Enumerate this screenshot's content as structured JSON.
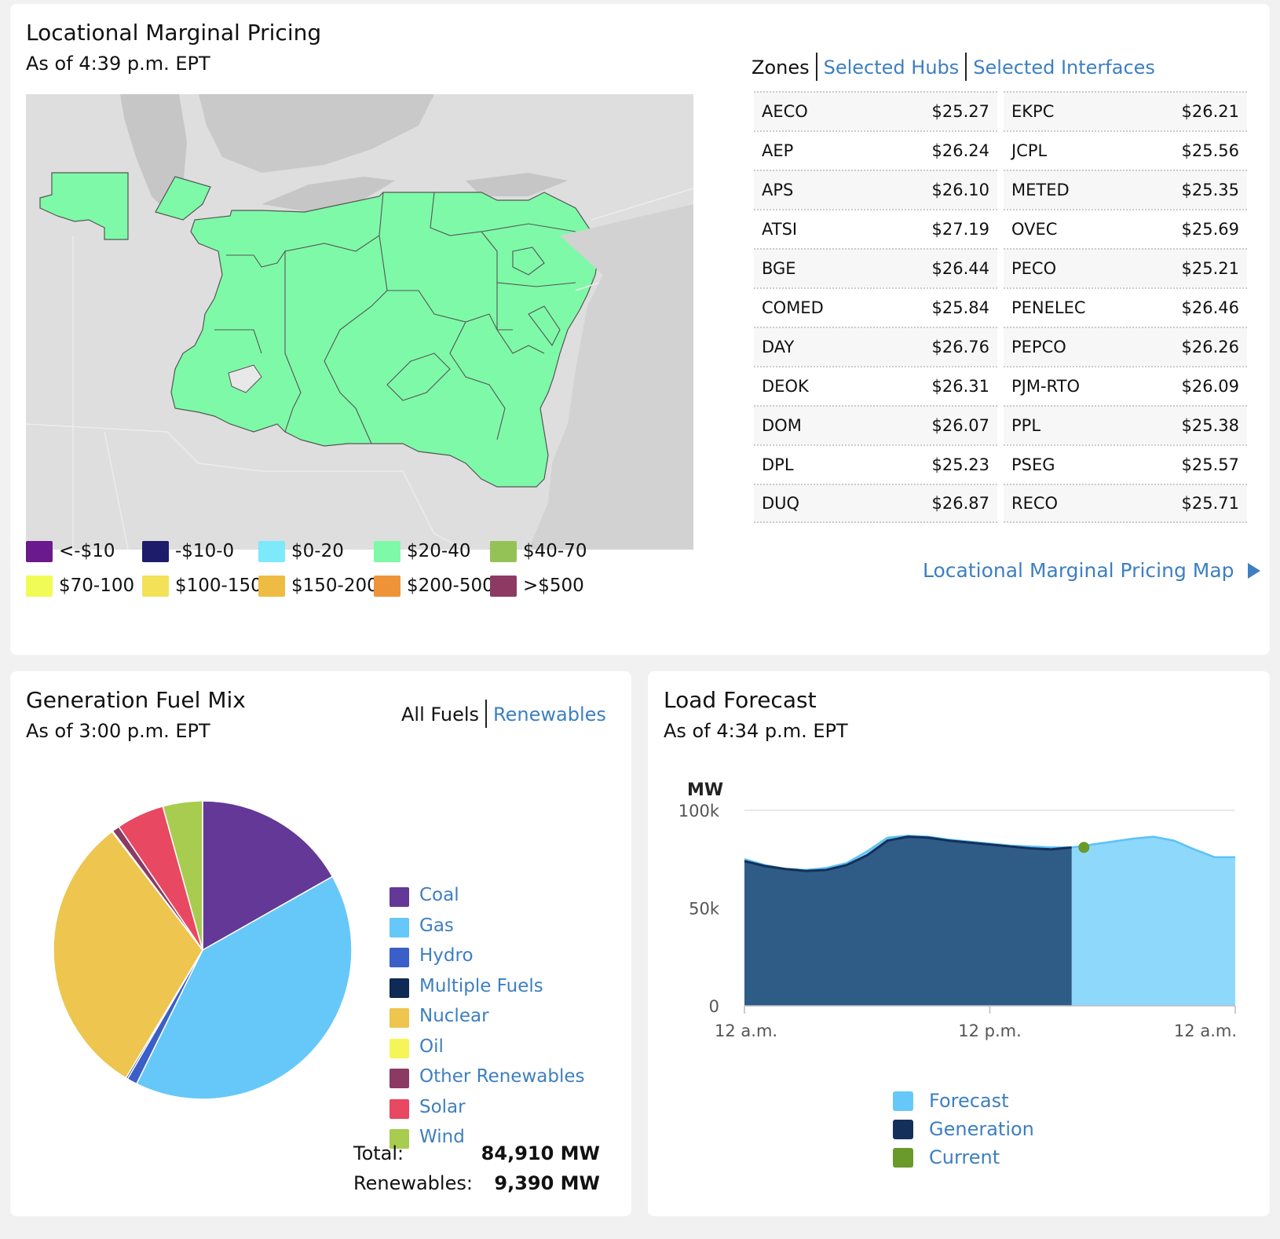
{
  "lmp": {
    "title": "Locational Marginal Pricing",
    "as_of": "As of 4:39 p.m. EPT",
    "tabs": {
      "zones": "Zones",
      "hubs": "Selected Hubs",
      "interfaces": "Selected Interfaces"
    },
    "zones": [
      {
        "name": "AECO",
        "price": "$25.27"
      },
      {
        "name": "AEP",
        "price": "$26.24"
      },
      {
        "name": "APS",
        "price": "$26.10"
      },
      {
        "name": "ATSI",
        "price": "$27.19"
      },
      {
        "name": "BGE",
        "price": "$26.44"
      },
      {
        "name": "COMED",
        "price": "$25.84"
      },
      {
        "name": "DAY",
        "price": "$26.76"
      },
      {
        "name": "DEOK",
        "price": "$26.31"
      },
      {
        "name": "DOM",
        "price": "$26.07"
      },
      {
        "name": "DPL",
        "price": "$25.23"
      },
      {
        "name": "DUQ",
        "price": "$26.87"
      },
      {
        "name": "EKPC",
        "price": "$26.21"
      },
      {
        "name": "JCPL",
        "price": "$25.56"
      },
      {
        "name": "METED",
        "price": "$25.35"
      },
      {
        "name": "OVEC",
        "price": "$25.69"
      },
      {
        "name": "PECO",
        "price": "$25.21"
      },
      {
        "name": "PENELEC",
        "price": "$26.46"
      },
      {
        "name": "PEPCO",
        "price": "$26.26"
      },
      {
        "name": "PJM-RTO",
        "price": "$26.09"
      },
      {
        "name": "PPL",
        "price": "$25.38"
      },
      {
        "name": "PSEG",
        "price": "$25.57"
      },
      {
        "name": "RECO",
        "price": "$25.71"
      }
    ],
    "map_link": "Locational Marginal Pricing Map",
    "map_colors": {
      "zone_fill": "#7ef9a8",
      "background": "#dcdcdc"
    },
    "price_legend": [
      {
        "label": "<-$10",
        "color": "#6a1a8c"
      },
      {
        "label": "-$10-0",
        "color": "#1c1c6b"
      },
      {
        "label": "$0-20",
        "color": "#7de9fb"
      },
      {
        "label": "$20-40",
        "color": "#7ef9a8"
      },
      {
        "label": "$40-70",
        "color": "#95c257"
      },
      {
        "label": "$70-100",
        "color": "#f1fb55"
      },
      {
        "label": "$100-150",
        "color": "#f3e157"
      },
      {
        "label": "$150-200",
        "color": "#efbc43"
      },
      {
        "label": "$200-500",
        "color": "#ee9338"
      },
      {
        "label": ">$500",
        "color": "#8b3b63"
      }
    ]
  },
  "fuel": {
    "title": "Generation Fuel Mix",
    "as_of": "As of 3:00 p.m. EPT",
    "tabs": {
      "all": "All Fuels",
      "renewables": "Renewables"
    },
    "total_label": "Total:",
    "total_value": "84,910 MW",
    "renewables_label": "Renewables:",
    "renewables_value": "9,390 MW"
  },
  "load": {
    "title": "Load Forecast",
    "as_of": "As of 4:34 p.m. EPT",
    "legend": [
      {
        "label": "Forecast",
        "color": "#66c8f8"
      },
      {
        "label": "Generation",
        "color": "#14305a"
      },
      {
        "label": "Current",
        "color": "#6a9a2a"
      }
    ]
  },
  "chart_data": [
    {
      "type": "pie",
      "title": "",
      "categories": [
        "Coal",
        "Gas",
        "Hydro",
        "Multiple Fuels",
        "Nuclear",
        "Oil",
        "Other Renewables",
        "Solar",
        "Wind"
      ],
      "values": [
        16.8,
        40.5,
        1.1,
        0.2,
        31.0,
        0.1,
        0.8,
        5.2,
        4.3
      ],
      "colors": [
        "#633896",
        "#66c8f8",
        "#3a5fc9",
        "#0f2a55",
        "#edc54f",
        "#f5f55a",
        "#8b3b63",
        "#e94862",
        "#a7cc50"
      ],
      "legend_placement": "right"
    },
    {
      "type": "area",
      "title": "",
      "ylabel": "MW",
      "ylim": [
        0,
        100000
      ],
      "yticks": [
        "0",
        "50k",
        "100k"
      ],
      "xticks": [
        "12 a.m.",
        "12 p.m.",
        "12 a.m."
      ],
      "x_hours": [
        0,
        1,
        2,
        3,
        4,
        5,
        6,
        7,
        8,
        9,
        10,
        11,
        12,
        13,
        14,
        15,
        16,
        17,
        18,
        19,
        20,
        21,
        22,
        23,
        24
      ],
      "series": [
        {
          "name": "Forecast",
          "values": [
            75000,
            72000,
            70000,
            69500,
            70500,
            73000,
            79000,
            86000,
            87000,
            86500,
            85000,
            84000,
            83000,
            82000,
            81500,
            81000,
            81000,
            82500,
            84000,
            85500,
            86500,
            84500,
            80000,
            76000,
            76000
          ]
        },
        {
          "name": "Generation",
          "values": [
            74000,
            71500,
            70000,
            69000,
            69500,
            72000,
            77000,
            84500,
            86500,
            86000,
            84500,
            83500,
            82500,
            81500,
            80500,
            80000,
            81000
          ]
        }
      ],
      "current": {
        "hour": 16.6,
        "value": 81000
      },
      "legend_placement": "bottom-center"
    }
  ]
}
